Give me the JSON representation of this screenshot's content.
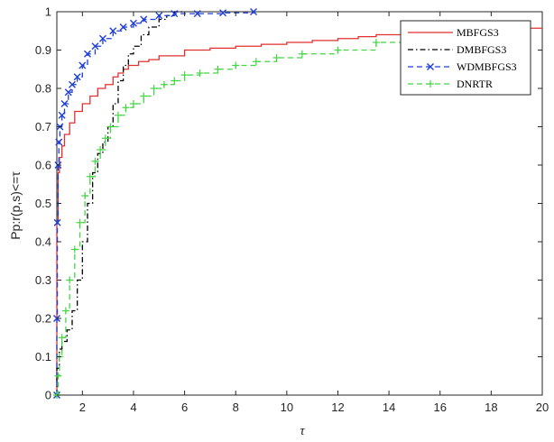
{
  "chart_data": {
    "type": "line",
    "title": "",
    "xlabel": "τ",
    "ylabel": "Pp:r(p,s)<=τ",
    "xlim": [
      1,
      20
    ],
    "ylim": [
      0,
      1
    ],
    "xticks": [
      2,
      4,
      6,
      8,
      10,
      12,
      14,
      16,
      18,
      20
    ],
    "xtick_labels": [
      "2",
      "4",
      "6",
      "8",
      "10",
      "12",
      "14",
      "16",
      "18",
      "20"
    ],
    "yticks": [
      0,
      0.1,
      0.2,
      0.3,
      0.4,
      0.5,
      0.6,
      0.7,
      0.8,
      0.9,
      1
    ],
    "ytick_labels": [
      "0",
      "0.1",
      "0.2",
      "0.3",
      "0.4",
      "0.5",
      "0.6",
      "0.7",
      "0.8",
      "0.9",
      "1"
    ],
    "grid": false,
    "legend_position": "top-right",
    "series": [
      {
        "name": "MBFGS3",
        "color": "#e03030",
        "style": "solid",
        "marker": "none",
        "x": [
          1,
          1.0,
          1.05,
          1.1,
          1.2,
          1.3,
          1.5,
          1.7,
          2.0,
          2.3,
          2.6,
          2.9,
          3.2,
          3.4,
          3.6,
          3.8,
          4.2,
          4.6,
          5.0,
          6.0,
          7.0,
          8.0,
          9.0,
          10.0,
          11.0,
          12.0,
          12.8,
          13.5,
          14.5,
          15.5,
          17.0,
          18.5,
          19.5,
          20.0
        ],
        "y": [
          0,
          0.45,
          0.58,
          0.62,
          0.65,
          0.68,
          0.71,
          0.74,
          0.76,
          0.78,
          0.8,
          0.81,
          0.83,
          0.84,
          0.85,
          0.86,
          0.87,
          0.875,
          0.885,
          0.9,
          0.905,
          0.91,
          0.915,
          0.92,
          0.925,
          0.93,
          0.935,
          0.94,
          0.945,
          0.95,
          0.952,
          0.955,
          0.957,
          0.957
        ]
      },
      {
        "name": "DMBFGS3",
        "color": "#000000",
        "style": "dashdot",
        "marker": "none",
        "x": [
          1,
          1.0,
          1.1,
          1.2,
          1.4,
          1.6,
          1.8,
          2.0,
          2.2,
          2.4,
          2.6,
          2.8,
          3.0,
          3.2,
          3.4,
          3.6,
          3.8,
          4.0,
          4.3,
          4.6,
          5.0,
          5.3,
          5.6,
          6.0
        ],
        "y": [
          0,
          0.07,
          0.12,
          0.14,
          0.17,
          0.22,
          0.3,
          0.4,
          0.5,
          0.58,
          0.63,
          0.66,
          0.7,
          0.76,
          0.82,
          0.86,
          0.89,
          0.91,
          0.94,
          0.96,
          0.98,
          0.99,
          1.0,
          1.0
        ]
      },
      {
        "name": "WDMBFGS3",
        "color": "#1f3fd6",
        "style": "dashed",
        "marker": "x",
        "x": [
          1,
          1.0,
          1.02,
          1.05,
          1.08,
          1.12,
          1.2,
          1.3,
          1.45,
          1.6,
          1.8,
          2.0,
          2.2,
          2.5,
          2.8,
          3.2,
          3.6,
          4.0,
          4.4,
          5.0,
          5.6,
          6.5,
          7.5,
          8.7
        ],
        "y": [
          0,
          0.2,
          0.45,
          0.6,
          0.66,
          0.7,
          0.73,
          0.76,
          0.79,
          0.81,
          0.83,
          0.86,
          0.89,
          0.91,
          0.93,
          0.95,
          0.96,
          0.97,
          0.98,
          0.99,
          0.995,
          0.995,
          0.997,
          1.0
        ]
      },
      {
        "name": "DNRTR",
        "color": "#44d444",
        "style": "dashed",
        "marker": "+",
        "x": [
          1,
          1.0,
          1.05,
          1.1,
          1.2,
          1.35,
          1.5,
          1.7,
          1.9,
          2.1,
          2.3,
          2.5,
          2.7,
          2.9,
          3.1,
          3.4,
          3.7,
          4.0,
          4.4,
          4.8,
          5.2,
          5.6,
          6.0,
          6.6,
          7.3,
          8.0,
          8.8,
          9.6,
          10.6,
          12.0,
          13.5,
          15.0,
          17.0,
          19.3
        ],
        "y": [
          0,
          0.0,
          0.05,
          0.1,
          0.15,
          0.22,
          0.3,
          0.38,
          0.45,
          0.52,
          0.57,
          0.61,
          0.64,
          0.67,
          0.7,
          0.73,
          0.75,
          0.76,
          0.78,
          0.8,
          0.81,
          0.82,
          0.835,
          0.84,
          0.85,
          0.86,
          0.87,
          0.88,
          0.89,
          0.9,
          0.92,
          0.935,
          0.95,
          0.96
        ]
      }
    ]
  }
}
